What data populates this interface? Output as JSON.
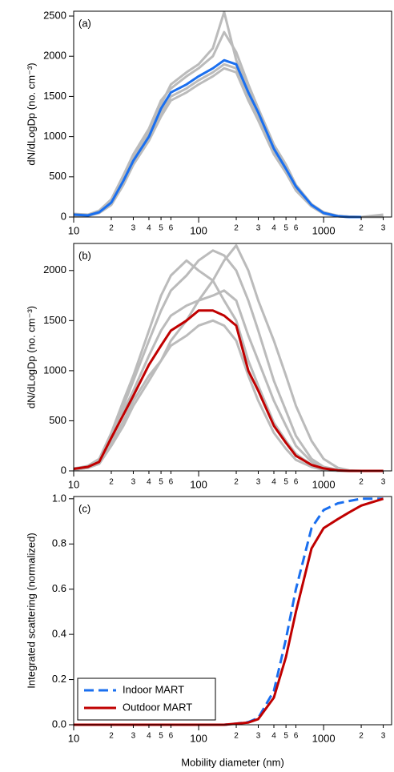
{
  "chart_data": [
    {
      "type": "line",
      "annotation": "(a)",
      "ylabel": "dN/dLogDp (no. cm⁻³)",
      "log_x": true,
      "x": [
        10,
        13,
        16,
        20,
        25,
        30,
        40,
        50,
        60,
        80,
        100,
        130,
        160,
        200,
        250,
        300,
        400,
        500,
        600,
        800,
        1000,
        1300,
        1600,
        2000,
        3000
      ],
      "xlim": [
        10,
        3500
      ],
      "ylim": [
        0,
        2560
      ],
      "xticks": [
        10,
        {
          "value": 20,
          "label": "2"
        },
        {
          "value": 30,
          "label": "3"
        },
        {
          "value": 40,
          "label": "4"
        },
        {
          "value": 50,
          "label": "5"
        },
        {
          "value": 60,
          "label": "6"
        },
        100,
        {
          "value": 200,
          "label": "2"
        },
        {
          "value": 300,
          "label": "3"
        },
        {
          "value": 400,
          "label": "4"
        },
        {
          "value": 500,
          "label": "5"
        },
        {
          "value": 600,
          "label": "6"
        },
        1000,
        {
          "value": 2000,
          "label": "2"
        },
        {
          "value": 3000,
          "label": "3"
        }
      ],
      "yticks": [
        0,
        500,
        1000,
        1500,
        2000,
        2500
      ],
      "series": [
        {
          "color": "#bbbbbb",
          "values": [
            40,
            30,
            80,
            220,
            520,
            780,
            1100,
            1450,
            1600,
            1750,
            1850,
            2000,
            2300,
            2050,
            1650,
            1350,
            900,
            650,
            400,
            160,
            60,
            15,
            5,
            0,
            0
          ]
        },
        {
          "color": "#bbbbbb",
          "values": [
            20,
            15,
            50,
            150,
            400,
            650,
            950,
            1250,
            1450,
            1550,
            1650,
            1750,
            1850,
            1800,
            1450,
            1200,
            780,
            550,
            330,
            130,
            40,
            10,
            0,
            0,
            0
          ]
        },
        {
          "color": "#bbbbbb",
          "values": [
            30,
            25,
            70,
            200,
            480,
            730,
            1050,
            1400,
            1650,
            1800,
            1900,
            2100,
            2550,
            1950,
            1600,
            1300,
            850,
            600,
            380,
            150,
            50,
            15,
            5,
            0,
            30
          ]
        },
        {
          "color": "#bbbbbb",
          "values": [
            25,
            20,
            55,
            160,
            420,
            680,
            980,
            1300,
            1500,
            1600,
            1700,
            1800,
            1900,
            1850,
            1500,
            1250,
            800,
            560,
            350,
            140,
            45,
            10,
            0,
            0,
            0
          ]
        },
        {
          "color": "#1a6fef",
          "values": [
            30,
            20,
            60,
            180,
            450,
            700,
            1000,
            1350,
            1550,
            1650,
            1750,
            1850,
            1950,
            1900,
            1550,
            1300,
            850,
            600,
            380,
            150,
            50,
            10,
            0,
            0,
            null
          ]
        }
      ]
    },
    {
      "type": "line",
      "annotation": "(b)",
      "ylabel": "dN/dLogDp (no. cm⁻³)",
      "log_x": true,
      "x": [
        10,
        13,
        16,
        20,
        25,
        30,
        40,
        50,
        60,
        80,
        100,
        130,
        160,
        200,
        250,
        300,
        400,
        500,
        600,
        800,
        1000,
        1300,
        1600,
        2000,
        3000
      ],
      "xlim": [
        10,
        3500
      ],
      "ylim": [
        0,
        2270
      ],
      "xticks": [
        10,
        {
          "value": 20,
          "label": "2"
        },
        {
          "value": 30,
          "label": "3"
        },
        {
          "value": 40,
          "label": "4"
        },
        {
          "value": 50,
          "label": "5"
        },
        {
          "value": 60,
          "label": "6"
        },
        100,
        {
          "value": 200,
          "label": "2"
        },
        {
          "value": 300,
          "label": "3"
        },
        {
          "value": 400,
          "label": "4"
        },
        {
          "value": 500,
          "label": "5"
        },
        {
          "value": 600,
          "label": "6"
        },
        1000,
        {
          "value": 2000,
          "label": "2"
        },
        {
          "value": 3000,
          "label": "3"
        }
      ],
      "yticks": [
        0,
        500,
        1000,
        1500,
        2000
      ],
      "series": [
        {
          "color": "#bbbbbb",
          "values": [
            10,
            30,
            80,
            300,
            650,
            900,
            1300,
            1600,
            1800,
            1950,
            2100,
            2200,
            2150,
            2000,
            1700,
            1400,
            900,
            600,
            350,
            120,
            40,
            10,
            0,
            0,
            0
          ]
        },
        {
          "color": "#bbbbbb",
          "values": [
            15,
            40,
            90,
            280,
            500,
            700,
            950,
            1100,
            1250,
            1350,
            1450,
            1500,
            1450,
            1300,
            950,
            700,
            380,
            220,
            110,
            40,
            10,
            0,
            0,
            0,
            0
          ]
        },
        {
          "color": "#bbbbbb",
          "values": [
            20,
            50,
            120,
            380,
            700,
            950,
            1400,
            1750,
            1950,
            2100,
            2000,
            1900,
            1700,
            1500,
            1100,
            850,
            480,
            300,
            170,
            60,
            20,
            5,
            0,
            0,
            0
          ]
        },
        {
          "color": "#bbbbbb",
          "values": [
            10,
            30,
            70,
            250,
            450,
            650,
            900,
            1100,
            1300,
            1500,
            1700,
            1900,
            2100,
            2250,
            2000,
            1700,
            1300,
            950,
            650,
            300,
            120,
            30,
            5,
            0,
            0
          ]
        },
        {
          "color": "#bbbbbb",
          "values": [
            25,
            45,
            100,
            350,
            600,
            800,
            1150,
            1400,
            1550,
            1650,
            1700,
            1750,
            1800,
            1700,
            1350,
            1100,
            700,
            450,
            250,
            90,
            30,
            5,
            0,
            0,
            0
          ]
        },
        {
          "color": "#c00000",
          "values": [
            20,
            40,
            90,
            330,
            560,
            750,
            1060,
            1250,
            1400,
            1500,
            1600,
            1600,
            1550,
            1450,
            1000,
            800,
            450,
            280,
            150,
            60,
            25,
            5,
            0,
            0,
            0
          ]
        }
      ]
    },
    {
      "type": "line",
      "annotation": "(c)",
      "ylabel": "Integrated scattering (normalized)",
      "xlabel": "Mobility diameter (nm)",
      "log_x": true,
      "legend": "lower-left",
      "x": [
        10,
        13,
        16,
        20,
        25,
        30,
        40,
        50,
        60,
        80,
        100,
        130,
        160,
        200,
        250,
        300,
        400,
        500,
        600,
        800,
        1000,
        1300,
        1600,
        2000,
        3000
      ],
      "xlim": [
        10,
        3500
      ],
      "ylim": [
        0,
        1.01
      ],
      "xticks": [
        10,
        {
          "value": 20,
          "label": "2"
        },
        {
          "value": 30,
          "label": "3"
        },
        {
          "value": 40,
          "label": "4"
        },
        {
          "value": 50,
          "label": "5"
        },
        {
          "value": 60,
          "label": "6"
        },
        100,
        {
          "value": 200,
          "label": "2"
        },
        {
          "value": 300,
          "label": "3"
        },
        {
          "value": 400,
          "label": "4"
        },
        {
          "value": 500,
          "label": "5"
        },
        {
          "value": 600,
          "label": "6"
        },
        1000,
        {
          "value": 2000,
          "label": "2"
        },
        {
          "value": 3000,
          "label": "3"
        }
      ],
      "yticks": [
        {
          "value": 0,
          "label": "0.0"
        },
        0.2,
        0.4,
        0.6,
        0.8,
        {
          "value": 1,
          "label": "1.0"
        }
      ],
      "series": [
        {
          "name": "Indoor MART",
          "color": "#1a6fef",
          "dashed": true,
          "values": [
            0,
            0,
            0,
            0,
            0,
            0,
            0,
            0,
            0,
            0,
            0,
            0,
            0,
            0.005,
            0.012,
            0.03,
            0.15,
            0.38,
            0.6,
            0.87,
            0.95,
            0.98,
            0.99,
            1,
            1
          ]
        },
        {
          "name": "Outdoor MART",
          "color": "#c00000",
          "dashed": false,
          "values": [
            0,
            0,
            0,
            0,
            0,
            0,
            0,
            0,
            0,
            0,
            0,
            0,
            0,
            0.005,
            0.01,
            0.025,
            0.12,
            0.3,
            0.5,
            0.78,
            0.87,
            0.91,
            0.94,
            0.97,
            1
          ]
        }
      ]
    }
  ]
}
